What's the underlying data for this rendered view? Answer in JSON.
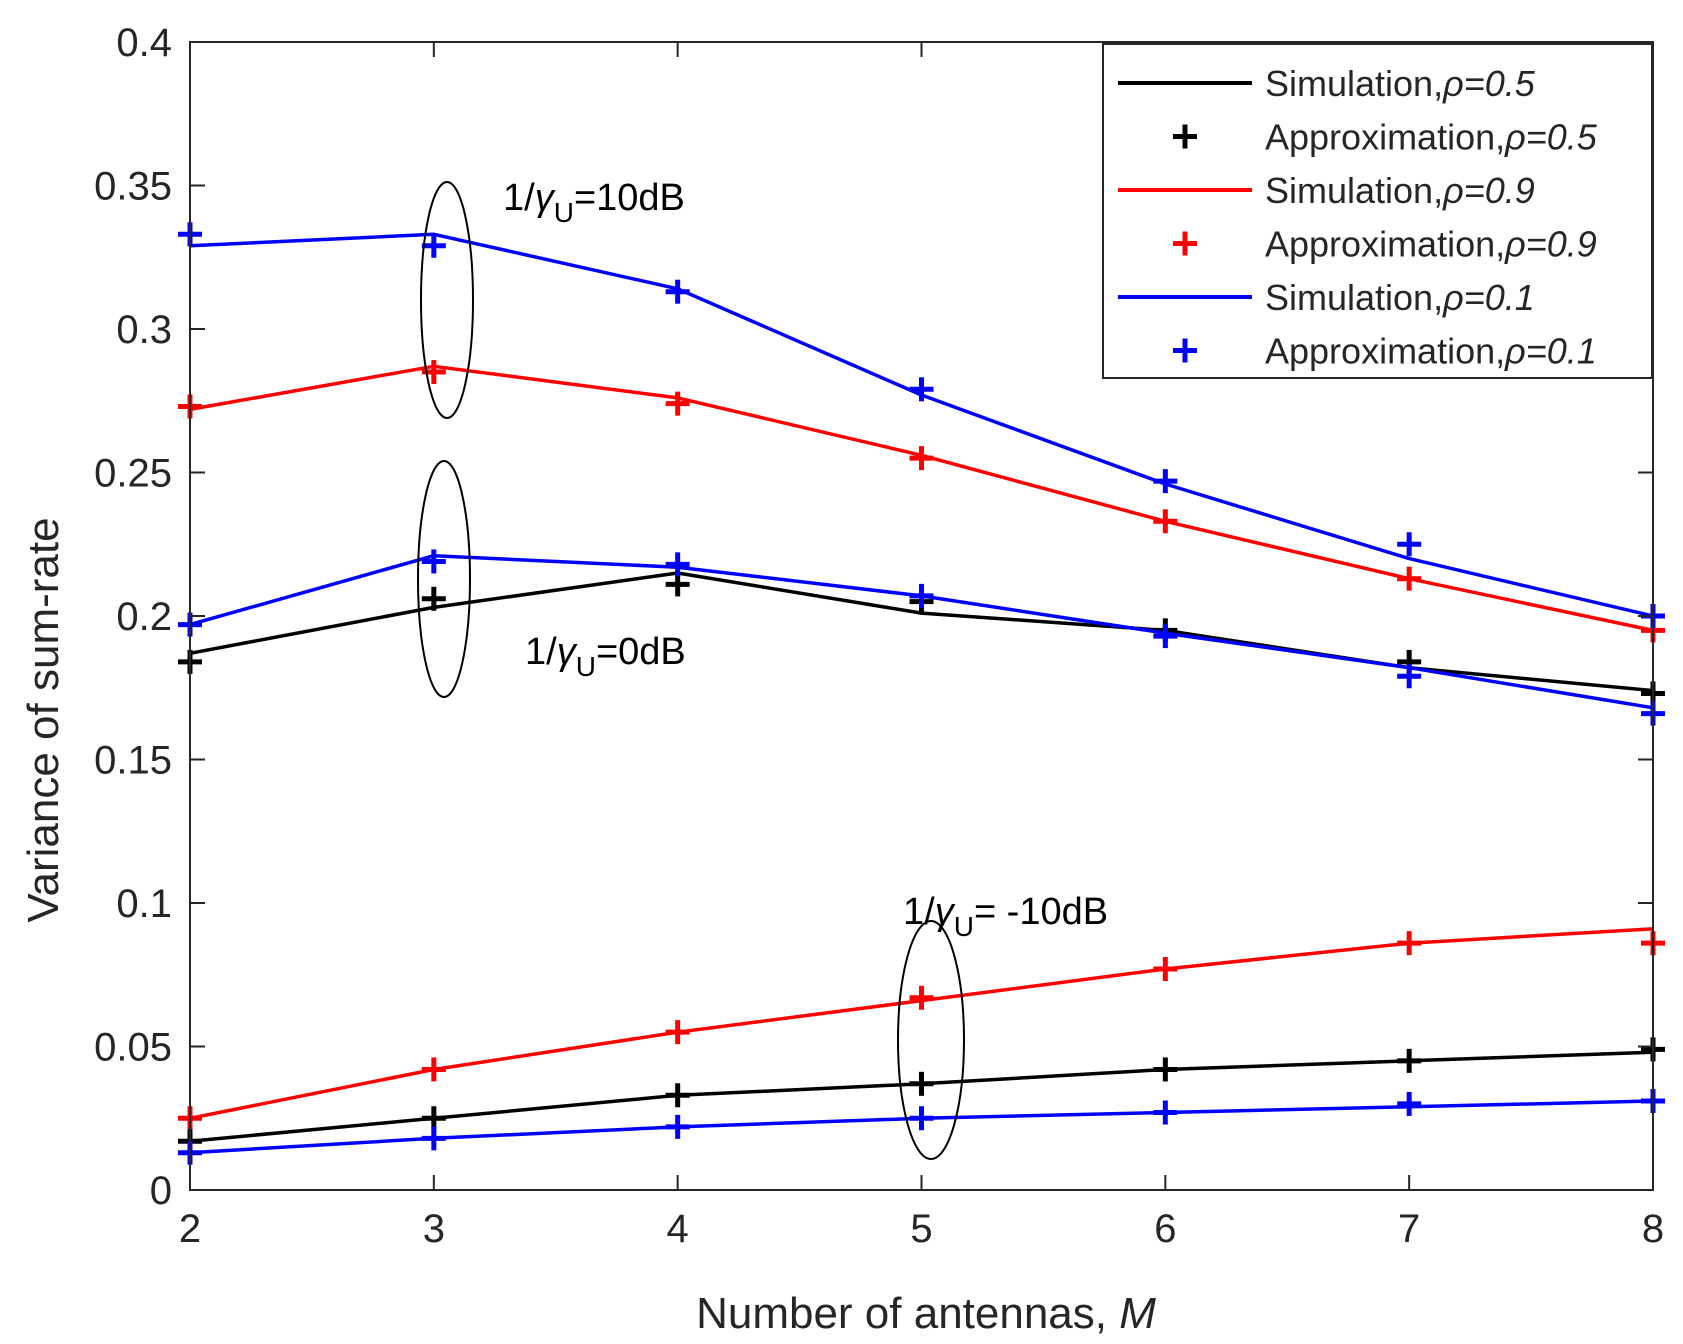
{
  "chart_data": {
    "type": "line",
    "xlabel": "Number of antennas,",
    "xlabel_var": "M",
    "ylabel": "Variance of sum-rate",
    "xlim": [
      2,
      8
    ],
    "ylim": [
      0,
      0.4
    ],
    "xticks": [
      2,
      3,
      4,
      5,
      6,
      7,
      8
    ],
    "yticks": [
      0,
      0.05,
      0.1,
      0.15,
      0.2,
      0.25,
      0.3,
      0.35,
      0.4
    ],
    "ytick_labels": [
      "0",
      "0.05",
      "0.1",
      "0.15",
      "0.2",
      "0.25",
      "0.3",
      "0.35",
      "0.4"
    ],
    "grid": false,
    "legend_position": "top-right",
    "x": [
      2,
      3,
      4,
      5,
      6,
      7,
      8
    ],
    "legend": [
      {
        "label": "Simulation,",
        "rho": "ρ=0.5",
        "kind": "line",
        "color": "#000000"
      },
      {
        "label": "Approximation,",
        "rho": "ρ=0.5",
        "kind": "marker",
        "color": "#000000"
      },
      {
        "label": "Simulation,",
        "rho": "ρ=0.9",
        "kind": "line",
        "color": "#ff0000"
      },
      {
        "label": "Approximation,",
        "rho": "ρ=0.9",
        "kind": "marker",
        "color": "#ff0000"
      },
      {
        "label": "Simulation,",
        "rho": "ρ=0.1",
        "kind": "line",
        "color": "#0000ff"
      },
      {
        "label": "Approximation,",
        "rho": "ρ=0.1",
        "kind": "marker",
        "color": "#0000ff"
      }
    ],
    "groups": [
      {
        "snr": "10dB",
        "series": [
          {
            "rho": 0.9,
            "color": "#ff0000",
            "sim": [
              0.272,
              0.287,
              0.276,
              0.256,
              0.233,
              0.213,
              0.195
            ],
            "approx": [
              0.273,
              0.285,
              0.274,
              0.255,
              0.233,
              0.213,
              0.195
            ]
          },
          {
            "rho": 0.1,
            "color": "#0000ff",
            "sim": [
              0.329,
              0.333,
              0.314,
              0.277,
              0.246,
              0.22,
              0.2
            ],
            "approx": [
              0.333,
              0.329,
              0.313,
              0.279,
              0.247,
              0.225,
              0.2
            ]
          }
        ]
      },
      {
        "snr": "0dB",
        "series": [
          {
            "rho": 0.5,
            "color": "#000000",
            "sim": [
              0.187,
              0.203,
              0.215,
              0.201,
              0.195,
              0.182,
              0.174
            ],
            "approx": [
              0.184,
              0.206,
              0.211,
              0.205,
              0.195,
              0.184,
              0.173
            ]
          },
          {
            "rho": 0.1,
            "color": "#0000ff",
            "sim": [
              0.197,
              0.221,
              0.217,
              0.207,
              0.194,
              0.182,
              0.168
            ],
            "approx": [
              0.197,
              0.219,
              0.218,
              0.207,
              0.193,
              0.179,
              0.166
            ]
          }
        ]
      },
      {
        "snr": "-10dB",
        "series": [
          {
            "rho": 0.9,
            "color": "#ff0000",
            "sim": [
              0.025,
              0.042,
              0.055,
              0.066,
              0.077,
              0.086,
              0.091
            ],
            "approx": [
              0.025,
              0.042,
              0.055,
              0.067,
              0.077,
              0.086,
              0.086
            ]
          },
          {
            "rho": 0.5,
            "color": "#000000",
            "sim": [
              0.017,
              0.025,
              0.033,
              0.037,
              0.042,
              0.045,
              0.048
            ],
            "approx": [
              0.017,
              0.025,
              0.033,
              0.037,
              0.042,
              0.045,
              0.049
            ]
          },
          {
            "rho": 0.1,
            "color": "#0000ff",
            "sim": [
              0.013,
              0.018,
              0.022,
              0.025,
              0.027,
              0.029,
              0.031
            ],
            "approx": [
              0.013,
              0.018,
              0.022,
              0.025,
              0.027,
              0.03,
              0.031
            ]
          }
        ]
      }
    ],
    "annotations": [
      {
        "prefix": "1/",
        "gamma": "γ",
        "sub": "U",
        "suffix": "=10dB"
      },
      {
        "prefix": "1/",
        "gamma": "γ",
        "sub": "U",
        "suffix": "=0dB"
      },
      {
        "prefix": "1/",
        "gamma": "γ",
        "sub": "U",
        "suffix": "= -10dB"
      }
    ]
  }
}
